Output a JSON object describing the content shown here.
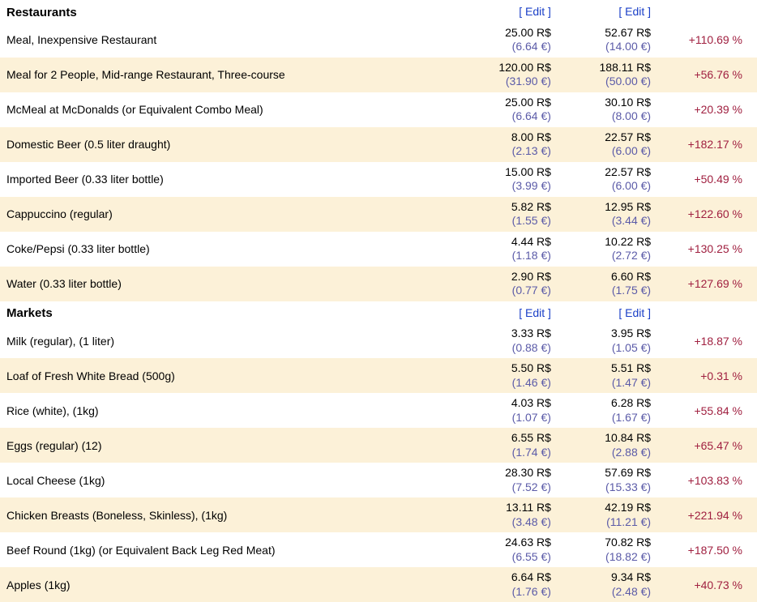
{
  "colors": {
    "alt_row_bg": "#fcf1d8",
    "edit_link": "#1a3fc7",
    "price_sub": "#5b5ba8",
    "diff_positive": "#a02040",
    "text": "#000000",
    "background": "#ffffff"
  },
  "sections": [
    {
      "title": "Restaurants",
      "edit_label": "[ Edit ]",
      "rows": [
        {
          "item": "Meal, Inexpensive Restaurant",
          "p1_main": "25.00 R$",
          "p1_sub": "(6.64 €)",
          "p2_main": "52.67 R$",
          "p2_sub": "(14.00 €)",
          "diff": "+110.69 %"
        },
        {
          "item": "Meal for 2 People, Mid-range Restaurant, Three-course",
          "p1_main": "120.00 R$",
          "p1_sub": "(31.90 €)",
          "p2_main": "188.11 R$",
          "p2_sub": "(50.00 €)",
          "diff": "+56.76 %"
        },
        {
          "item": "McMeal at McDonalds (or Equivalent Combo Meal)",
          "p1_main": "25.00 R$",
          "p1_sub": "(6.64 €)",
          "p2_main": "30.10 R$",
          "p2_sub": "(8.00 €)",
          "diff": "+20.39 %"
        },
        {
          "item": "Domestic Beer (0.5 liter draught)",
          "p1_main": "8.00 R$",
          "p1_sub": "(2.13 €)",
          "p2_main": "22.57 R$",
          "p2_sub": "(6.00 €)",
          "diff": "+182.17 %"
        },
        {
          "item": "Imported Beer (0.33 liter bottle)",
          "p1_main": "15.00 R$",
          "p1_sub": "(3.99 €)",
          "p2_main": "22.57 R$",
          "p2_sub": "(6.00 €)",
          "diff": "+50.49 %"
        },
        {
          "item": "Cappuccino (regular)",
          "p1_main": "5.82 R$",
          "p1_sub": "(1.55 €)",
          "p2_main": "12.95 R$",
          "p2_sub": "(3.44 €)",
          "diff": "+122.60 %"
        },
        {
          "item": "Coke/Pepsi (0.33 liter bottle)",
          "p1_main": "4.44 R$",
          "p1_sub": "(1.18 €)",
          "p2_main": "10.22 R$",
          "p2_sub": "(2.72 €)",
          "diff": "+130.25 %"
        },
        {
          "item": "Water (0.33 liter bottle)",
          "p1_main": "2.90 R$",
          "p1_sub": "(0.77 €)",
          "p2_main": "6.60 R$",
          "p2_sub": "(1.75 €)",
          "diff": "+127.69 %"
        }
      ]
    },
    {
      "title": "Markets",
      "edit_label": "[ Edit ]",
      "rows": [
        {
          "item": "Milk (regular), (1 liter)",
          "p1_main": "3.33 R$",
          "p1_sub": "(0.88 €)",
          "p2_main": "3.95 R$",
          "p2_sub": "(1.05 €)",
          "diff": "+18.87 %"
        },
        {
          "item": "Loaf of Fresh White Bread (500g)",
          "p1_main": "5.50 R$",
          "p1_sub": "(1.46 €)",
          "p2_main": "5.51 R$",
          "p2_sub": "(1.47 €)",
          "diff": "+0.31 %"
        },
        {
          "item": "Rice (white), (1kg)",
          "p1_main": "4.03 R$",
          "p1_sub": "(1.07 €)",
          "p2_main": "6.28 R$",
          "p2_sub": "(1.67 €)",
          "diff": "+55.84 %"
        },
        {
          "item": "Eggs (regular) (12)",
          "p1_main": "6.55 R$",
          "p1_sub": "(1.74 €)",
          "p2_main": "10.84 R$",
          "p2_sub": "(2.88 €)",
          "diff": "+65.47 %"
        },
        {
          "item": "Local Cheese (1kg)",
          "p1_main": "28.30 R$",
          "p1_sub": "(7.52 €)",
          "p2_main": "57.69 R$",
          "p2_sub": "(15.33 €)",
          "diff": "+103.83 %"
        },
        {
          "item": "Chicken Breasts (Boneless, Skinless), (1kg)",
          "p1_main": "13.11 R$",
          "p1_sub": "(3.48 €)",
          "p2_main": "42.19 R$",
          "p2_sub": "(11.21 €)",
          "diff": "+221.94 %"
        },
        {
          "item": "Beef Round (1kg) (or Equivalent Back Leg Red Meat)",
          "p1_main": "24.63 R$",
          "p1_sub": "(6.55 €)",
          "p2_main": "70.82 R$",
          "p2_sub": "(18.82 €)",
          "diff": "+187.50 %"
        },
        {
          "item": "Apples (1kg)",
          "p1_main": "6.64 R$",
          "p1_sub": "(1.76 €)",
          "p2_main": "9.34 R$",
          "p2_sub": "(2.48 €)",
          "diff": "+40.73 %"
        }
      ]
    }
  ]
}
